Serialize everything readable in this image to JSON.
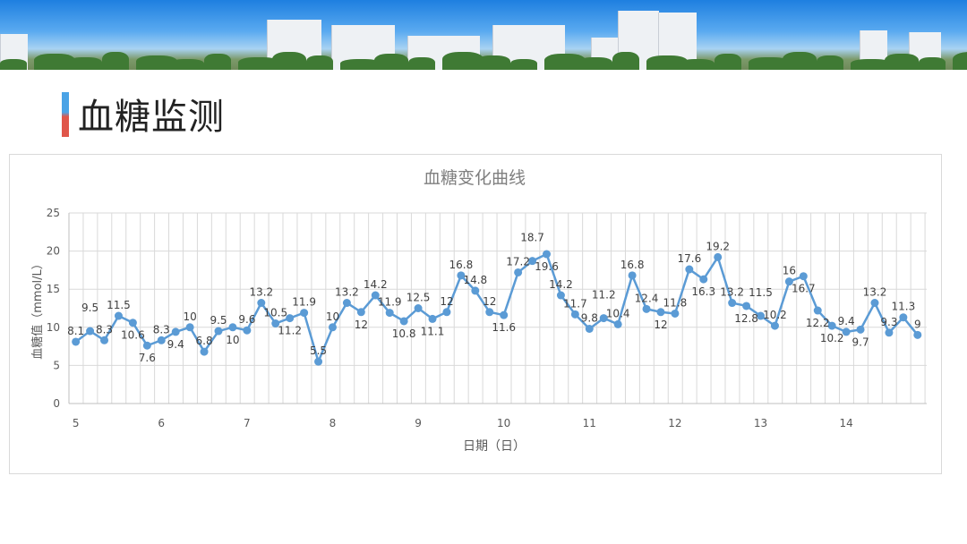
{
  "slide": {
    "title": "血糖监测"
  },
  "colors": {
    "series": "#5b9bd5",
    "grid": "#d9d9d9",
    "text": "#595959",
    "title_bar_top": "#4aa3e6",
    "title_bar_bottom": "#e0564a"
  },
  "chart_data": {
    "type": "line",
    "title": "血糖变化曲线",
    "xlabel": "日期（日）",
    "ylabel": "血糖值（mmol/L）",
    "ylim": [
      0,
      25
    ],
    "yticks": [
      0,
      5,
      10,
      15,
      20,
      25
    ],
    "xticks": [
      5,
      6,
      7,
      8,
      9,
      10,
      11,
      12,
      13,
      14
    ],
    "xlim": [
      4.92,
      14.94
    ],
    "grid": true,
    "legend": "none",
    "x_start": 5,
    "points_per_day": 6,
    "values": [
      8.1,
      9.5,
      8.3,
      11.5,
      10.6,
      7.6,
      8.3,
      9.4,
      10,
      6.8,
      9.5,
      10,
      9.6,
      13.2,
      10.5,
      11.2,
      11.9,
      5.5,
      10,
      13.2,
      12,
      14.2,
      11.9,
      10.8,
      12.5,
      11.1,
      12,
      16.8,
      14.8,
      12,
      11.6,
      17.2,
      18.7,
      19.6,
      14.2,
      11.7,
      9.8,
      11.2,
      10.4,
      16.8,
      12.4,
      12,
      11.8,
      17.6,
      16.3,
      19.2,
      13.2,
      12.8,
      11.5,
      10.2,
      16,
      16.7,
      12.2,
      10.2,
      9.4,
      9.7,
      13.2,
      9.3,
      11.3,
      9
    ]
  }
}
